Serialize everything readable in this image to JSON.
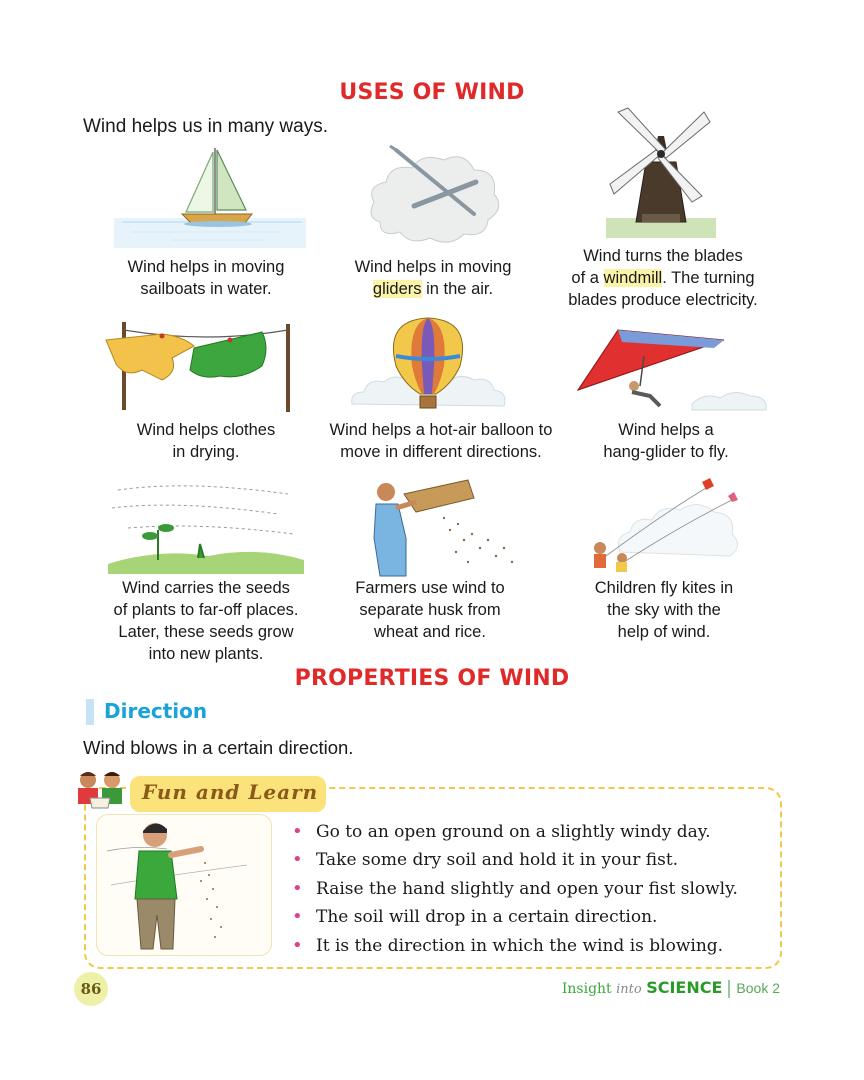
{
  "uses": {
    "title": "USES OF WIND",
    "intro": "Wind helps us in many ways.",
    "items": [
      {
        "line1": "Wind helps in moving",
        "line2": "sailboats in water.",
        "icon": "sailboat-icon"
      },
      {
        "line1": "Wind helps in moving",
        "line2_hl": "gliders",
        "line2_rest": " in the air.",
        "icon": "glider-icon"
      },
      {
        "line1": "Wind turns the blades",
        "line2_pre": "of a ",
        "line2_hl": "windmill",
        "line2_rest": ". The turning",
        "line3": "blades produce electricity.",
        "icon": "windmill-icon"
      },
      {
        "line1": "Wind helps clothes",
        "line2": "in drying.",
        "icon": "clothesline-icon"
      },
      {
        "line1": "Wind helps a hot-air balloon to",
        "line2": "move in different directions.",
        "icon": "hot-air-balloon-icon"
      },
      {
        "line1": "Wind helps a",
        "line2": "hang-glider to fly.",
        "icon": "hang-glider-icon"
      },
      {
        "line1": "Wind carries the seeds",
        "line2": "of plants to far-off places.",
        "line3": "Later, these seeds grow",
        "line4": "into new plants.",
        "icon": "seedling-icon"
      },
      {
        "line1": "Farmers use wind to",
        "line2": "separate husk from",
        "line3": "wheat and rice.",
        "icon": "farmer-winnowing-icon"
      },
      {
        "line1": "Children fly kites in",
        "line2": "the sky with the",
        "line3": "help of wind.",
        "icon": "kite-icon"
      }
    ]
  },
  "properties": {
    "title": "PROPERTIES OF WIND",
    "section": "Direction",
    "text": "Wind blows in a certain direction."
  },
  "fun": {
    "label": "Fun and Learn",
    "bullets": [
      "Go to an open ground on a slightly windy day.",
      "Take some dry soil and hold it in your fist.",
      "Raise the hand slightly and open your fist slowly.",
      "The soil will drop in a certain direction.",
      "It is the direction in which the wind is blowing."
    ]
  },
  "footer": {
    "page": "86",
    "insight": "Insight",
    "into": "into",
    "science": "SCIENCE",
    "book": "Book 2"
  },
  "colors": {
    "heading": "#e02a2a",
    "direction": "#1aa3d9",
    "highlight": "#fbf3a8",
    "bullet": "#e0408a",
    "footer": "#3aa83a"
  }
}
